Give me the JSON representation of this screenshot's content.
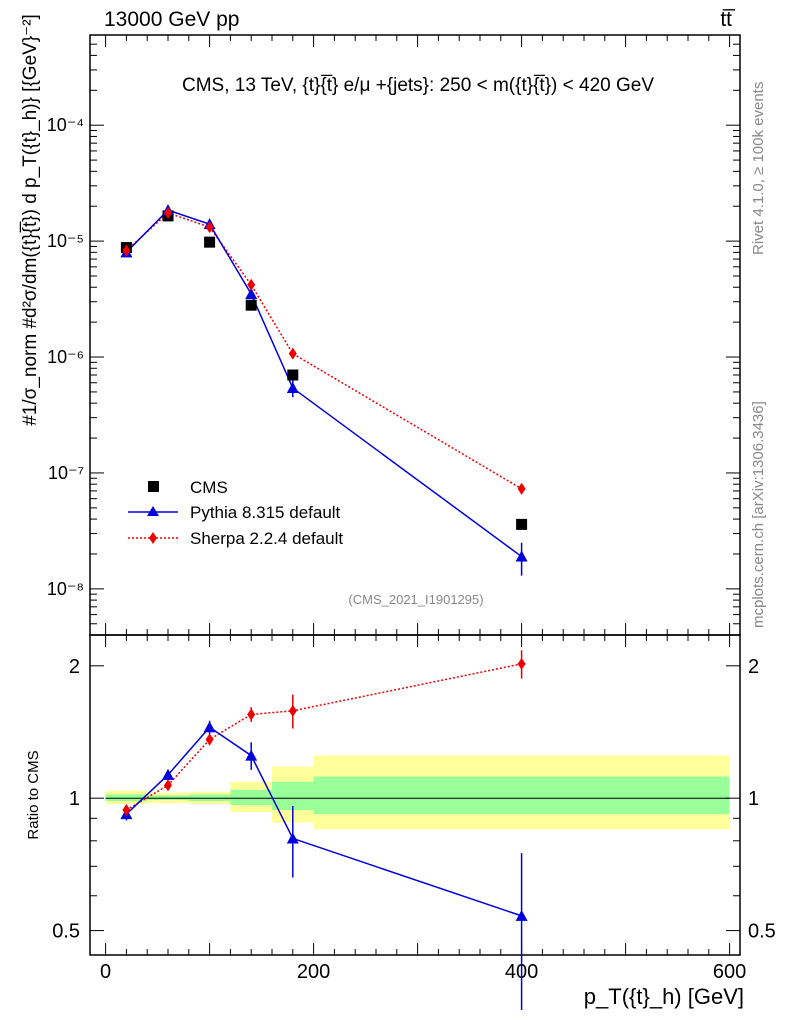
{
  "header": {
    "energy_label": "13000 GeV pp",
    "process_label": "tt̅"
  },
  "side_labels": {
    "rivet": "Rivet 4.1.0, ≥ 100k events",
    "mcplots": "mcplots.cern.ch [arXiv:1306.3436]"
  },
  "analysis_tag": "(CMS_2021_I1901295)",
  "colors": {
    "data": "#000000",
    "pythia": "#0000dd",
    "sherpa": "#ee0000",
    "band_outer": "#ffff99",
    "band_inner": "#99ff99"
  },
  "chart_data": [
    {
      "panel": "main",
      "type": "line",
      "title": "CMS, 13 TeV, {t}{̅t} e/μ +{jets}: 250 < m({t}{̅t}) < 420 GeV",
      "ylabel": "#1/σ_norm #d²σ/dm({t}{̅t}) d p_T({t}_h)} [{GeV}⁻²]",
      "yscale": "log",
      "ylim": [
        4e-09,
        0.0006
      ],
      "xlim": [
        -15,
        610
      ],
      "y_ticks": [
        {
          "value": 1e-08,
          "label": "10⁻⁸"
        },
        {
          "value": 1e-07,
          "label": "10⁻⁷"
        },
        {
          "value": 1e-06,
          "label": "10⁻⁶"
        },
        {
          "value": 1e-05,
          "label": "10⁻⁵"
        },
        {
          "value": 0.0001,
          "label": "10⁻⁴"
        }
      ],
      "series": [
        {
          "name": "CMS",
          "style": "markers",
          "x": [
            20,
            60,
            100,
            140,
            180,
            400
          ],
          "y": [
            8.8e-06,
            1.65e-05,
            9.8e-06,
            2.8e-06,
            7e-07,
            3.6e-08
          ]
        },
        {
          "name": "Pythia 8.315 default",
          "style": "solid",
          "x": [
            20,
            60,
            100,
            140,
            180,
            400
          ],
          "y": [
            8e-06,
            1.85e-05,
            1.4e-05,
            3.5e-06,
            5.4e-07,
            1.9e-08
          ],
          "err": [
            4e-07,
            7e-07,
            6e-07,
            2.5e-07,
            9e-08,
            6e-09
          ]
        },
        {
          "name": "Sherpa 2.2.4 default",
          "style": "dotted",
          "x": [
            20,
            60,
            100,
            140,
            180,
            400
          ],
          "y": [
            8.3e-06,
            1.75e-05,
            1.32e-05,
            4.2e-06,
            1.07e-06,
            7.3e-08
          ],
          "err": [
            3e-07,
            6e-07,
            5e-07,
            2.5e-07,
            8e-08,
            7e-09
          ]
        }
      ]
    },
    {
      "panel": "ratio",
      "type": "line",
      "ylabel": "Ratio to CMS",
      "xlabel": "p_T({t}_h) [GeV]",
      "yscale": "log",
      "ylim": [
        0.44,
        2.35
      ],
      "xlim": [
        -15,
        610
      ],
      "y_ticks": [
        {
          "value": 0.5,
          "label": "0.5"
        },
        {
          "value": 1,
          "label": "1"
        },
        {
          "value": 2,
          "label": "2"
        }
      ],
      "x_ticks": [
        {
          "value": 0,
          "label": "0"
        },
        {
          "value": 200,
          "label": "200"
        },
        {
          "value": 400,
          "label": "400"
        },
        {
          "value": 600,
          "label": "600"
        }
      ],
      "bands": [
        {
          "x0": 0,
          "x1": 40,
          "outer": [
            0.97,
            1.04
          ],
          "inner": [
            0.985,
            1.02
          ]
        },
        {
          "x0": 40,
          "x1": 80,
          "outer": [
            0.975,
            1.03
          ],
          "inner": [
            0.99,
            1.015
          ]
        },
        {
          "x0": 80,
          "x1": 120,
          "outer": [
            0.97,
            1.035
          ],
          "inner": [
            0.985,
            1.02
          ]
        },
        {
          "x0": 120,
          "x1": 160,
          "outer": [
            0.93,
            1.09
          ],
          "inner": [
            0.965,
            1.045
          ]
        },
        {
          "x0": 160,
          "x1": 200,
          "outer": [
            0.88,
            1.18
          ],
          "inner": [
            0.94,
            1.09
          ]
        },
        {
          "x0": 200,
          "x1": 600,
          "outer": [
            0.85,
            1.25
          ],
          "inner": [
            0.92,
            1.12
          ]
        }
      ],
      "series": [
        {
          "name": "Pythia 8.315 default",
          "style": "solid",
          "x": [
            20,
            60,
            100,
            140,
            180,
            400
          ],
          "y": [
            0.92,
            1.13,
            1.45,
            1.25,
            0.81,
            0.54
          ],
          "err": [
            0.03,
            0.03,
            0.05,
            0.09,
            0.15,
            0.21
          ]
        },
        {
          "name": "Sherpa 2.2.4 default",
          "style": "dotted",
          "x": [
            20,
            60,
            100,
            140,
            180,
            400
          ],
          "y": [
            0.94,
            1.07,
            1.36,
            1.55,
            1.58,
            2.02
          ],
          "err": [
            0.02,
            0.02,
            0.04,
            0.06,
            0.14,
            0.15
          ]
        }
      ]
    }
  ]
}
